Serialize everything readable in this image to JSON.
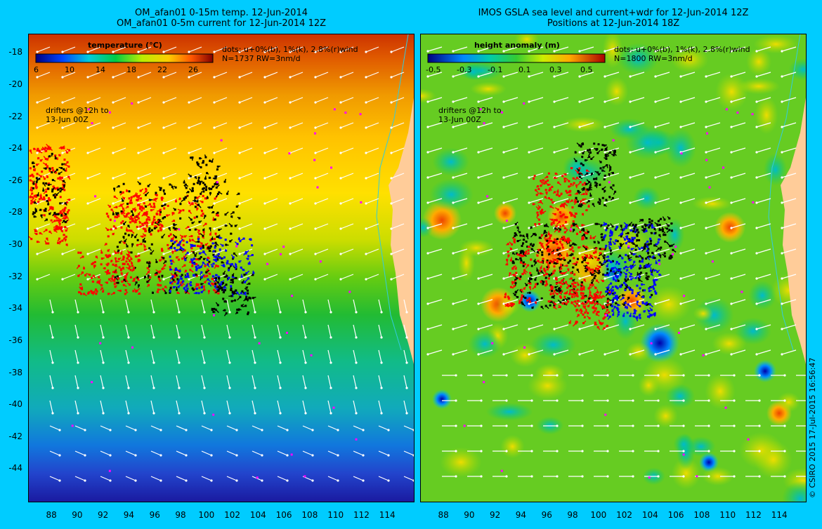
{
  "left": {
    "title_line1": "OM_afan01 0-15m temp. 12-Jun-2014",
    "title_line2": "OM_afan01 0-5m current for 12-Jun-2014 12Z",
    "colorbar_title": "temperature (°C)",
    "colorbar_ticks": [
      "6",
      "10",
      "14",
      "18",
      "22",
      "26"
    ],
    "dots_text": "dots: u+0%(b), 1%(k), 2.8%(r)wind",
    "count_text": "N=1737 RW=3nm/d",
    "drifters_text_1": "drifters @12h to",
    "drifters_text_2": "13-Jun 00Z"
  },
  "right": {
    "title_line1": "IMOS GSLA sea level and current+wdr for 12-Jun-2014 12Z",
    "title_line2": "Positions at 12-Jun-2014 18Z",
    "colorbar_title": "height anomaly (m)",
    "colorbar_ticks": [
      "-0.5",
      "-0.3",
      "-0.1",
      "0.1",
      "0.3",
      "0.5"
    ],
    "dots_text": "dots: u+0%(b), 1%(k), 2.8%(r)wind",
    "count_text": "N=1800 RW=3nm/d",
    "drifters_text_1": "drifters @12h to",
    "drifters_text_2": "13-Jun 00Z"
  },
  "axes": {
    "lat_ticks": [
      "-18",
      "-20",
      "-22",
      "-24",
      "-26",
      "-28",
      "-30",
      "-32",
      "-34",
      "-36",
      "-38",
      "-40",
      "-42",
      "-44"
    ],
    "lon_ticks": [
      "88",
      "90",
      "92",
      "94",
      "96",
      "98",
      "100",
      "102",
      "104",
      "106",
      "108",
      "110",
      "112",
      "114"
    ],
    "lat_range": [
      -46,
      -16.8
    ],
    "lon_range": [
      86.2,
      116
    ]
  },
  "copyright": "© CSIRO 2015   17-Jul-2015 16:56:47",
  "colors": {
    "background": "#00ccff",
    "land": "#ffcc99",
    "drifter_blue": "#0000ff",
    "drifter_black": "#000000",
    "drifter_red": "#ff0000",
    "drifter_magenta": "#ff00ff"
  }
}
